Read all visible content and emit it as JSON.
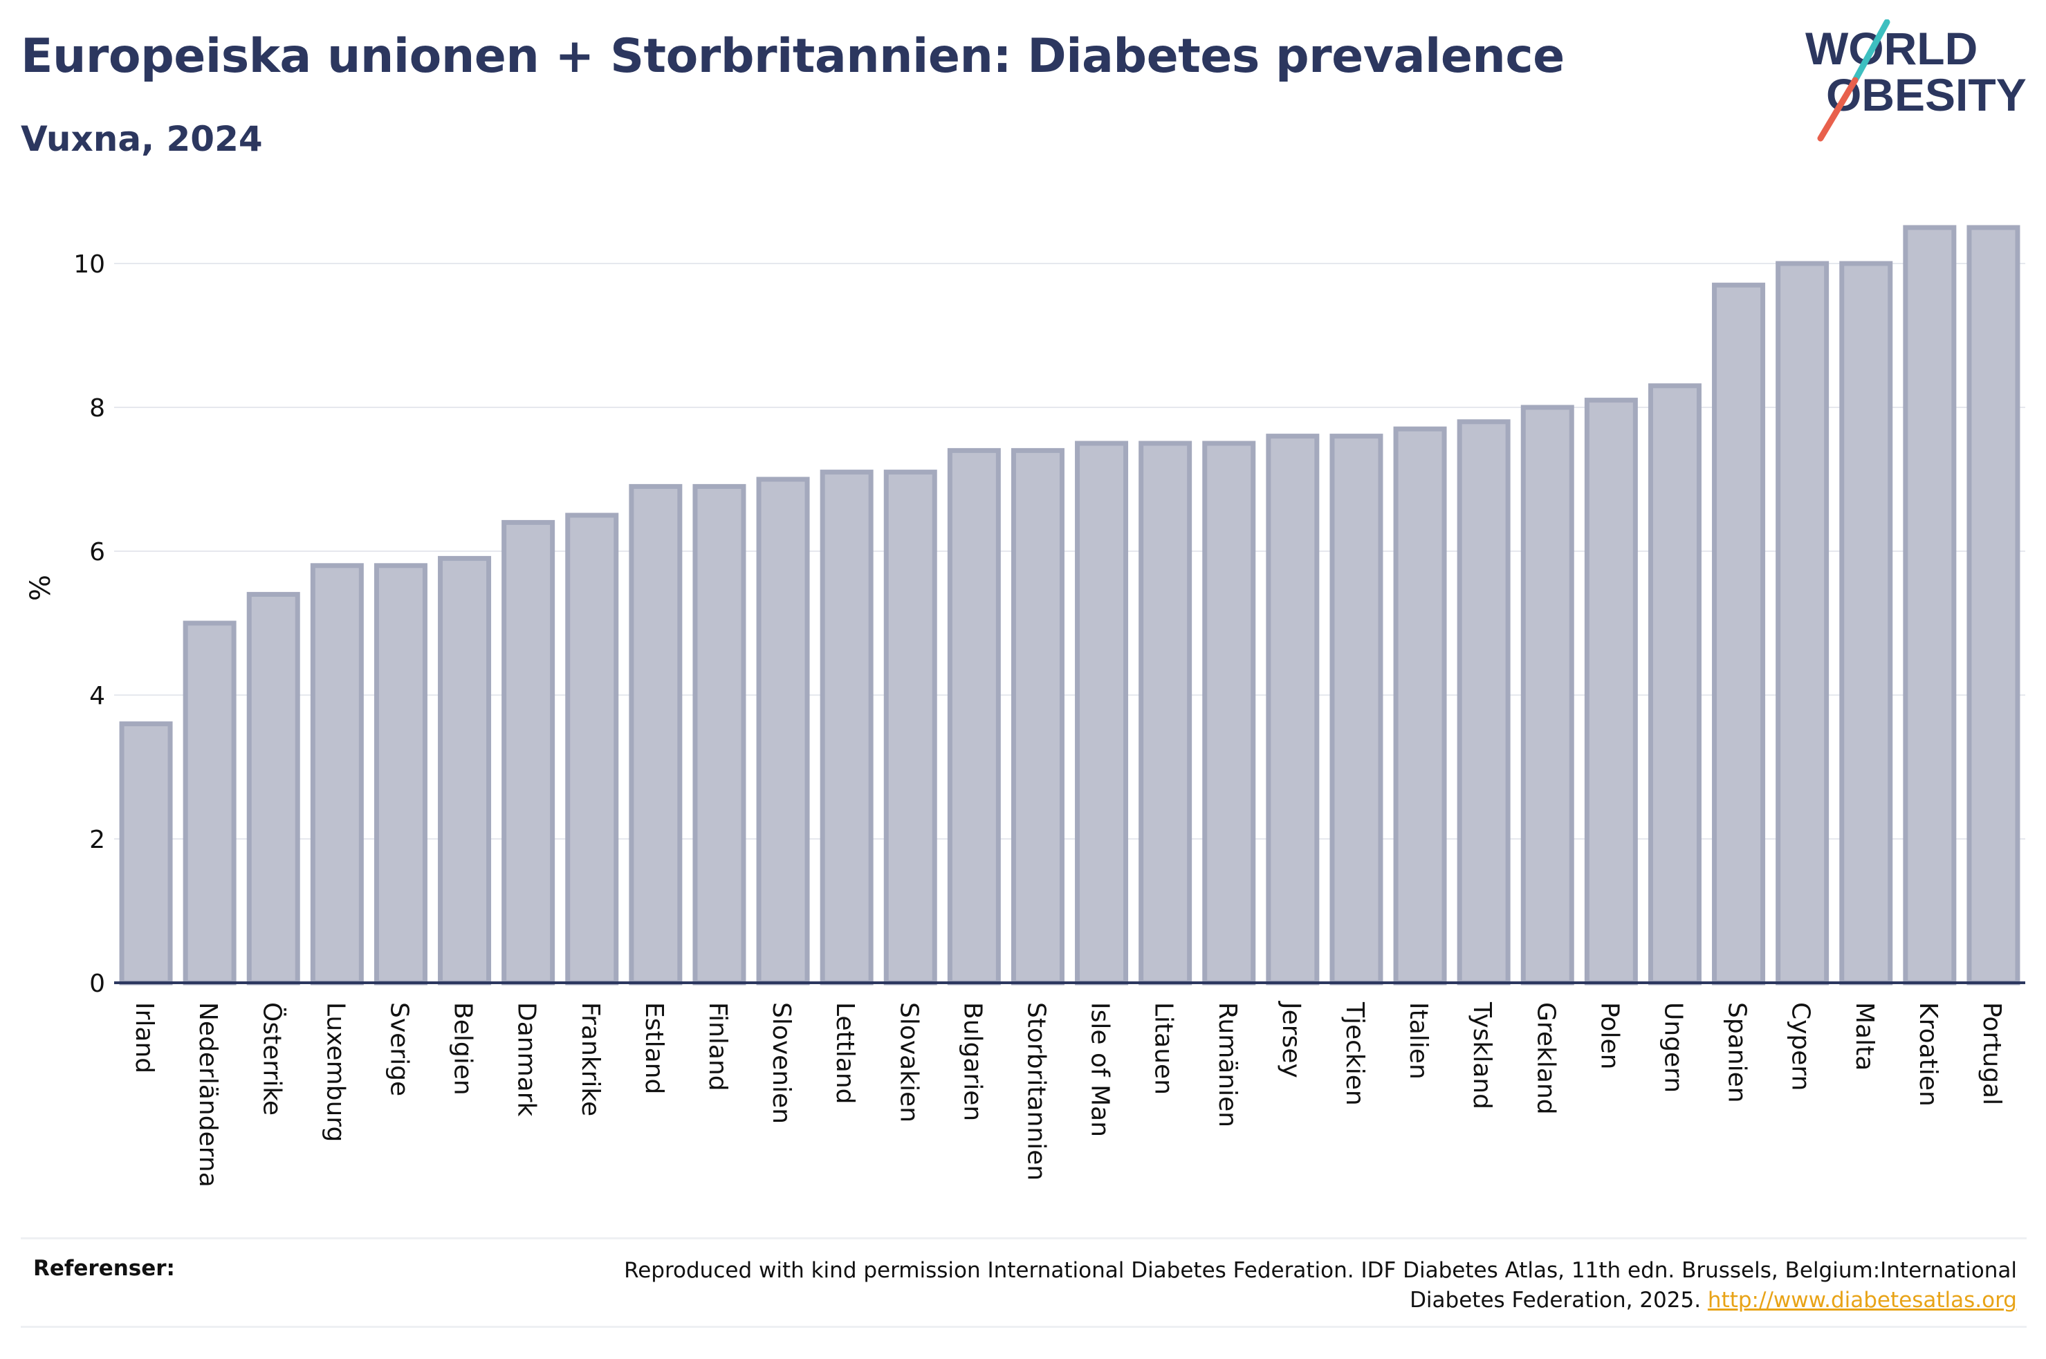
{
  "header": {
    "title": "Europeiska unionen + Storbritannien: Diabetes prevalence",
    "subtitle": "Vuxna, 2024"
  },
  "logo": {
    "line1": "WORLD",
    "line2": "OBESITY",
    "colors": {
      "text": "#2c375f",
      "slash_teal": "#3dbfc0",
      "slash_red": "#e8604c"
    }
  },
  "chart_data": {
    "type": "bar",
    "ylabel": "%",
    "xlabel": "",
    "ylim": [
      0,
      10.9
    ],
    "yticks": [
      0,
      2,
      4,
      6,
      8,
      10
    ],
    "grid": true,
    "categories": [
      "Irland",
      "Nederländerna",
      "Österrike",
      "Luxemburg",
      "Sverige",
      "Belgien",
      "Danmark",
      "Frankrike",
      "Estland",
      "Finland",
      "Slovenien",
      "Lettland",
      "Slovakien",
      "Bulgarien",
      "Storbritannien",
      "Isle of Man",
      "Litauen",
      "Rumänien",
      "Jersey",
      "Tjeckien",
      "Italien",
      "Tyskland",
      "Grekland",
      "Polen",
      "Ungern",
      "Spanien",
      "Cypern",
      "Malta",
      "Kroatien",
      "Portugal"
    ],
    "values": [
      3.6,
      5.0,
      5.4,
      5.8,
      5.8,
      5.9,
      6.4,
      6.5,
      6.9,
      6.9,
      7.0,
      7.1,
      7.1,
      7.4,
      7.4,
      7.5,
      7.5,
      7.5,
      7.6,
      7.6,
      7.7,
      7.8,
      8.0,
      8.1,
      8.3,
      9.7,
      10.0,
      10.0,
      10.5,
      10.5
    ],
    "colors": {
      "bar_fill": "#bec1cf",
      "bar_stroke": "#a4a9bd",
      "axis": "#2c375f",
      "grid": "#e6e8ee"
    }
  },
  "footer": {
    "references_label": "Referenser:",
    "reference_line1": "Reproduced with kind permission International Diabetes Federation. IDF Diabetes Atlas, 11th edn. Brussels, Belgium:International",
    "reference_line2": "Diabetes Federation, 2025.",
    "reference_link": "http://www.diabetesatlas.org"
  }
}
